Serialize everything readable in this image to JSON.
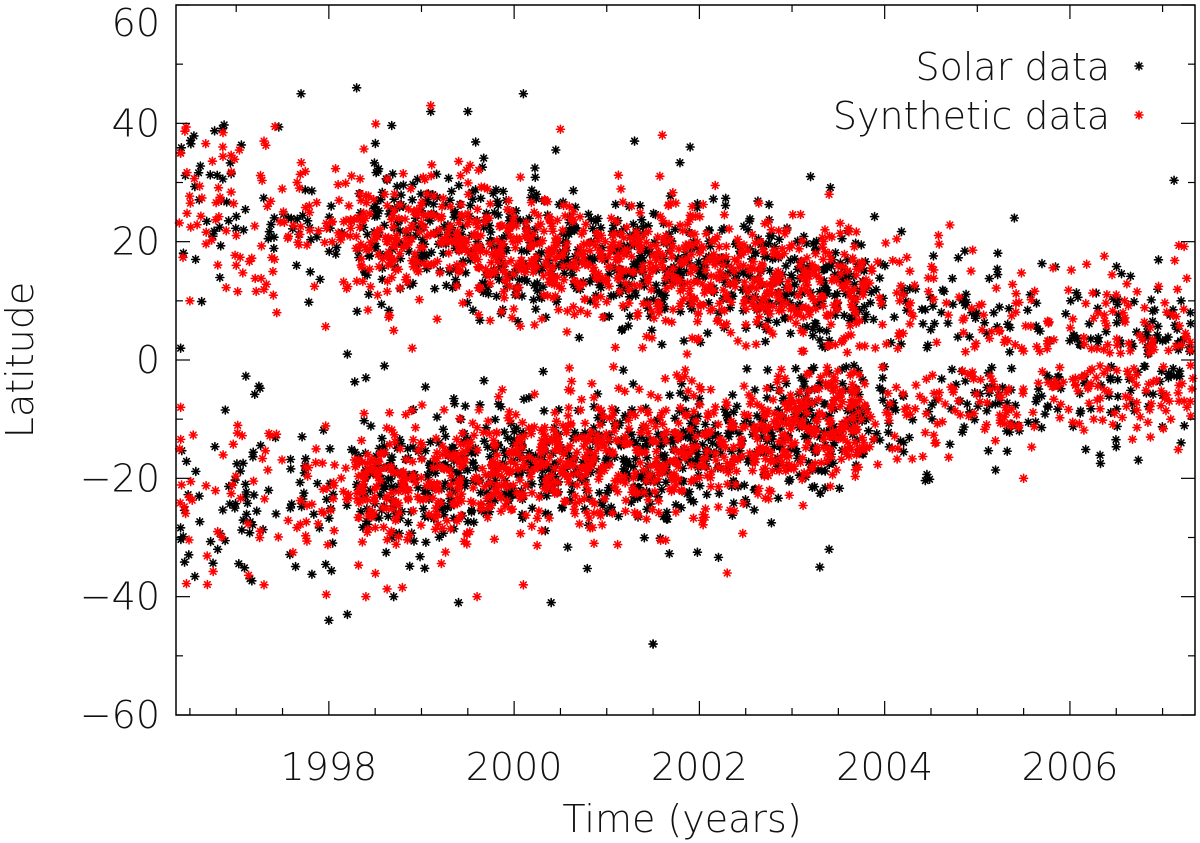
{
  "chart_data": {
    "type": "scatter",
    "title": "",
    "xlabel": "Time (years)",
    "ylabel": "Latitude",
    "xlim": [
      1996.35,
      2007.35
    ],
    "ylim": [
      -60,
      60
    ],
    "x_ticks": [
      "1998",
      "2000",
      "2002",
      "2004",
      "2006"
    ],
    "x_tick_values": [
      1998,
      2000,
      2002,
      2004,
      2006
    ],
    "y_ticks": [
      "60",
      "40",
      "20",
      "0",
      "−20",
      "−40",
      "−60"
    ],
    "y_tick_values": [
      60,
      40,
      20,
      0,
      -20,
      -40,
      -60
    ],
    "marker": "asterisk",
    "legend_position": "top-right",
    "grid": false,
    "series": [
      {
        "name": "Solar data",
        "color": "#000000",
        "description_points": [
          [
            1997.7,
            45
          ],
          [
            1998.3,
            46
          ],
          [
            1999.1,
            42
          ],
          [
            2000.1,
            45
          ],
          [
            1999.5,
            42
          ],
          [
            2001.3,
            37
          ],
          [
            2001.9,
            36
          ],
          [
            2003.2,
            31
          ],
          [
            2005.4,
            24
          ],
          [
            1996.4,
            35
          ],
          [
            1998.0,
            -44
          ],
          [
            1998.2,
            -43
          ],
          [
            1998.7,
            -40
          ],
          [
            1999.4,
            -41
          ],
          [
            2000.4,
            -41
          ],
          [
            2001.5,
            -48
          ],
          [
            2001.5,
            -48
          ],
          [
            2003.3,
            -35
          ],
          [
            2003.4,
            -32
          ],
          [
            1996.6,
            -23
          ],
          [
            1996.8,
            -32
          ],
          [
            1997.1,
            -21
          ],
          [
            2007.0,
            -6
          ],
          [
            2007.2,
            -14
          ],
          [
            2007.3,
            8
          ],
          [
            2007.2,
            10
          ],
          [
            1998.2,
            1
          ],
          [
            1998.4,
            -3
          ],
          [
            1998.6,
            -1
          ],
          [
            1996.4,
            2
          ]
        ]
      },
      {
        "name": "Synthetic data",
        "color": "#ff0000",
        "description_points": [
          [
            1999.1,
            43
          ],
          [
            2000.5,
            39
          ],
          [
            2001.6,
            38
          ],
          [
            1997.3,
            37
          ],
          [
            2003.4,
            28
          ],
          [
            1999.6,
            -40
          ],
          [
            1997.3,
            -38
          ],
          [
            2002.3,
            -36
          ],
          [
            1998.4,
            -40
          ],
          [
            2000.1,
            -38
          ],
          [
            2006.5,
            11
          ],
          [
            2007.3,
            3
          ],
          [
            1996.5,
            10
          ],
          [
            1996.4,
            -8
          ],
          [
            1997.0,
            16
          ],
          [
            1996.8,
            -29
          ],
          [
            2007.3,
            -7
          ],
          [
            2005.5,
            -20
          ],
          [
            1998.7,
            5
          ],
          [
            1998.9,
            2
          ]
        ]
      }
    ],
    "bands": [
      {
        "series": 0,
        "hemi": 1,
        "count": 900,
        "seed": 11
      },
      {
        "series": 0,
        "hemi": -1,
        "count": 950,
        "seed": 23
      },
      {
        "series": 1,
        "hemi": 1,
        "count": 1150,
        "seed": 37
      },
      {
        "series": 1,
        "hemi": -1,
        "count": 1200,
        "seed": 51
      }
    ]
  }
}
